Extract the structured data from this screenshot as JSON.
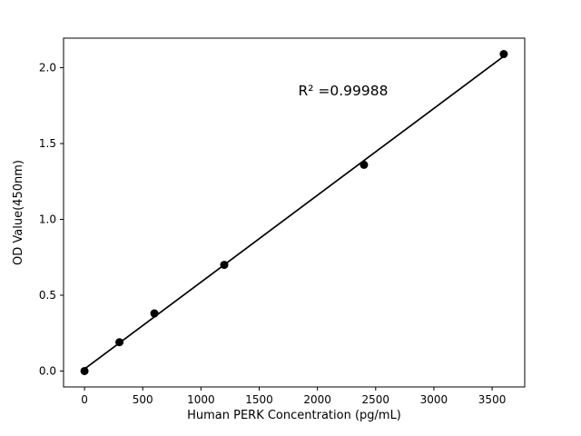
{
  "chart_data": {
    "type": "scatter",
    "title": "",
    "xlabel": "Human PERK Concentration (pg/mL)",
    "ylabel": "OD Value(450nm)",
    "annotation": "R² =0.99988",
    "x": [
      0,
      300,
      600,
      1200,
      2400,
      3600
    ],
    "y": [
      0.0,
      0.19,
      0.38,
      0.7,
      1.36,
      2.09
    ],
    "has_fit_line": true,
    "xticks": [
      0,
      500,
      1000,
      1500,
      2000,
      2500,
      3000,
      3500
    ],
    "yticks": [
      0.0,
      0.5,
      1.0,
      1.5,
      2.0
    ],
    "xlim": [
      -180,
      3780
    ],
    "ylim": [
      -0.105,
      2.195
    ],
    "marker_color": "#000000",
    "line_color": "#000000",
    "background": "#ffffff",
    "grid": false,
    "legend": "none"
  }
}
